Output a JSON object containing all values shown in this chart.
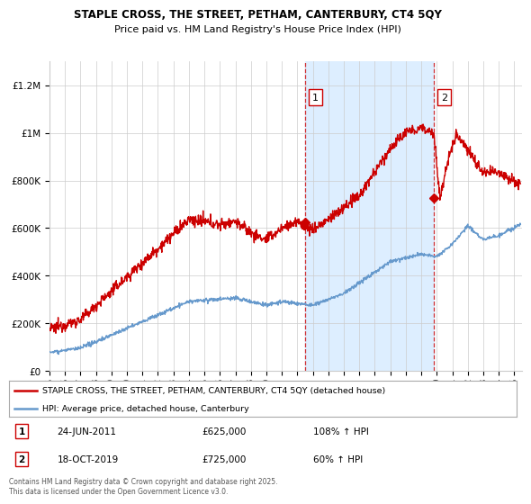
{
  "title_line1": "STAPLE CROSS, THE STREET, PETHAM, CANTERBURY, CT4 5QY",
  "title_line2": "Price paid vs. HM Land Registry's House Price Index (HPI)",
  "ylabel_ticks": [
    "£0",
    "£200K",
    "£400K",
    "£600K",
    "£800K",
    "£1M",
    "£1.2M"
  ],
  "ytick_values": [
    0,
    200000,
    400000,
    600000,
    800000,
    1000000,
    1200000
  ],
  "ylim": [
    0,
    1300000
  ],
  "xlim_start": 1995.0,
  "xlim_end": 2025.5,
  "xticks": [
    1995,
    1996,
    1997,
    1998,
    1999,
    2000,
    2001,
    2002,
    2003,
    2004,
    2005,
    2006,
    2007,
    2008,
    2009,
    2010,
    2011,
    2012,
    2013,
    2014,
    2015,
    2016,
    2017,
    2018,
    2019,
    2020,
    2021,
    2022,
    2023,
    2024,
    2025
  ],
  "house_color": "#cc0000",
  "hpi_color": "#6699cc",
  "grid_color": "#cccccc",
  "shade_color": "#ddeeff",
  "background_color": "#ffffff",
  "marker1_x": 2011.48,
  "marker1_y": 625000,
  "marker2_x": 2019.79,
  "marker2_y": 725000,
  "vline1_x": 2011.48,
  "vline2_x": 2019.79,
  "ann1_label": "1",
  "ann2_label": "2",
  "legend_house": "STAPLE CROSS, THE STREET, PETHAM, CANTERBURY, CT4 5QY (detached house)",
  "legend_hpi": "HPI: Average price, detached house, Canterbury",
  "note1_label": "1",
  "note1_date": "24-JUN-2011",
  "note1_price": "£625,000",
  "note1_hpi": "108% ↑ HPI",
  "note2_label": "2",
  "note2_date": "18-OCT-2019",
  "note2_price": "£725,000",
  "note2_hpi": "60% ↑ HPI",
  "footer": "Contains HM Land Registry data © Crown copyright and database right 2025.\nThis data is licensed under the Open Government Licence v3.0."
}
